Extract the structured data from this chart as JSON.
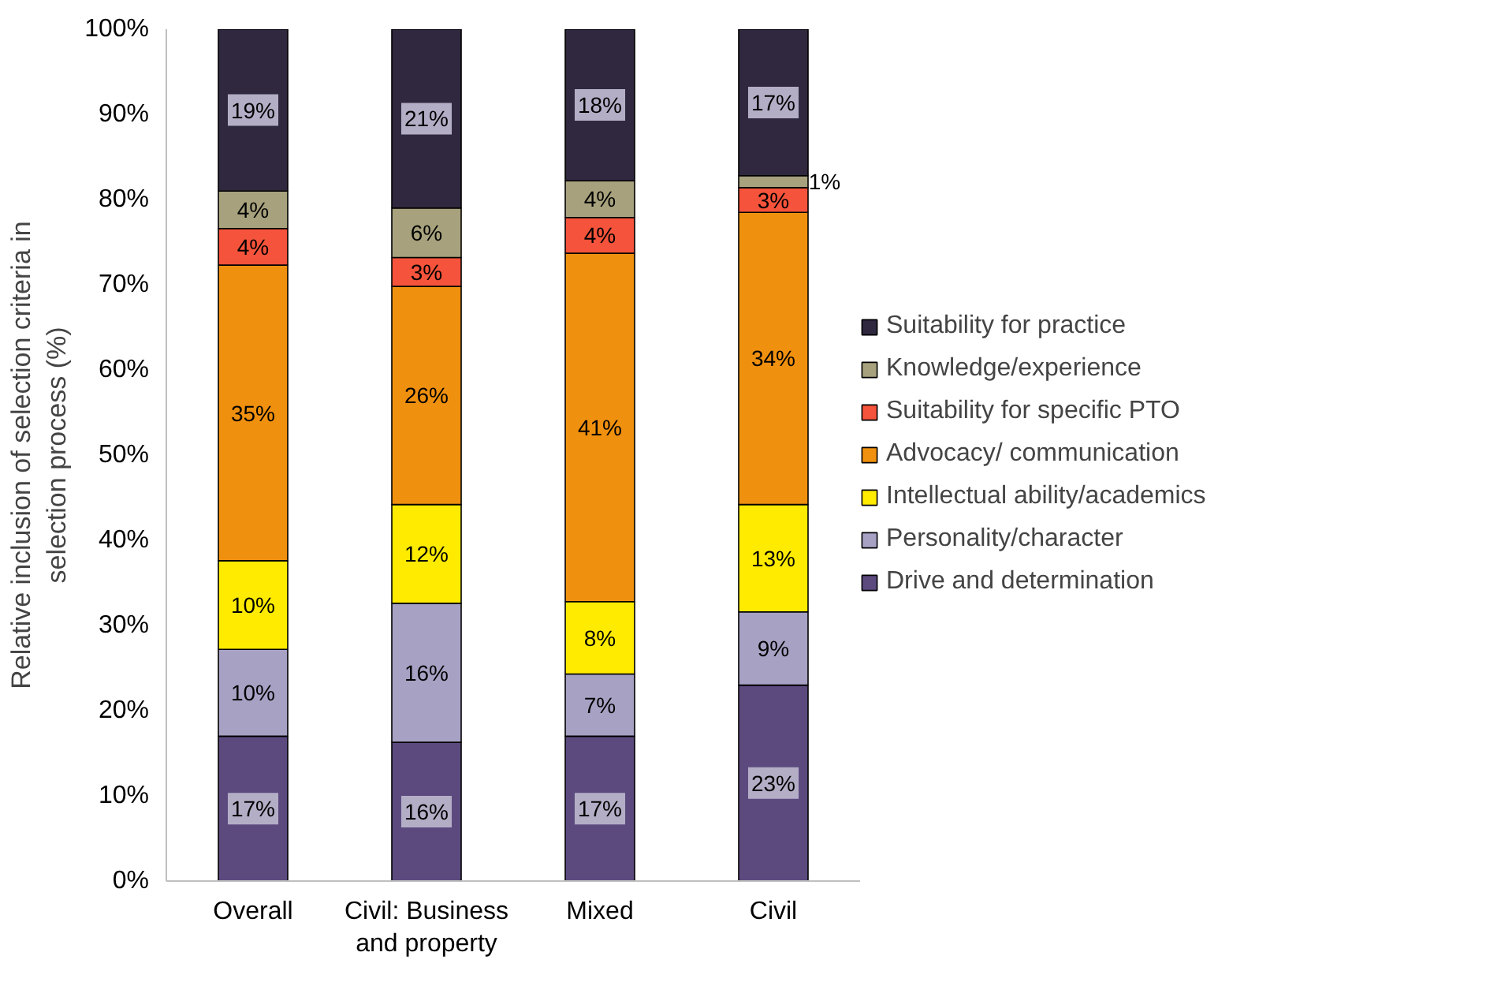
{
  "chart_data": {
    "type": "bar",
    "stacked": true,
    "ylabel": "Relative inclusion of selection criteria in selection process (%)",
    "categories": [
      "Overall",
      "Civil: Business and property",
      "Mixed",
      "Civil"
    ],
    "ylim": [
      0,
      100
    ],
    "yticks": [
      {
        "value": 0,
        "label": "0%"
      },
      {
        "value": 10,
        "label": "10%"
      },
      {
        "value": 20,
        "label": "20%"
      },
      {
        "value": 30,
        "label": "30%"
      },
      {
        "value": 40,
        "label": "40%"
      },
      {
        "value": 50,
        "label": "50%"
      },
      {
        "value": 60,
        "label": "60%"
      },
      {
        "value": 70,
        "label": "70%"
      },
      {
        "value": 80,
        "label": "80%"
      },
      {
        "value": 90,
        "label": "90%"
      },
      {
        "value": 100,
        "label": "100%"
      }
    ],
    "grid": false,
    "legend": "right",
    "series": [
      {
        "name": "Drive and determination",
        "color": "#5c4a7f",
        "values": [
          17,
          16.3,
          17,
          23
        ],
        "value_labels": [
          "17%",
          "16%",
          "17%",
          "23%"
        ]
      },
      {
        "name": "Personality/character",
        "color": "#a7a2c4",
        "values": [
          10.2,
          16.3,
          7.3,
          8.6
        ],
        "value_labels": [
          "10%",
          "16%",
          "7%",
          "9%"
        ]
      },
      {
        "name": "Intellectual ability/academics",
        "color": "#ffeb00",
        "values": [
          10.4,
          11.6,
          8.5,
          12.6
        ],
        "value_labels": [
          "10%",
          "12%",
          "8%",
          "13%"
        ]
      },
      {
        "name": "Advocacy/ communication",
        "color": "#f0900f",
        "values": [
          34.7,
          25.6,
          40.9,
          34.3
        ],
        "value_labels": [
          "35%",
          "26%",
          "41%",
          "34%"
        ]
      },
      {
        "name": "Suitability for specific PTO",
        "color": "#f5533b",
        "values": [
          4.3,
          3.4,
          4.2,
          2.9
        ],
        "value_labels": [
          "4%",
          "3%",
          "4%",
          "3%"
        ]
      },
      {
        "name": "Knowledge/experience",
        "color": "#a7a27d",
        "values": [
          4.4,
          5.8,
          4.3,
          1.4
        ],
        "value_labels": [
          "4%",
          "6%",
          "4%",
          "1%"
        ]
      },
      {
        "name": "Suitability for practice",
        "color": "#30283f",
        "values": [
          19,
          21,
          17.8,
          17.2
        ],
        "value_labels": [
          "19%",
          "21%",
          "18%",
          "17%"
        ]
      }
    ]
  }
}
